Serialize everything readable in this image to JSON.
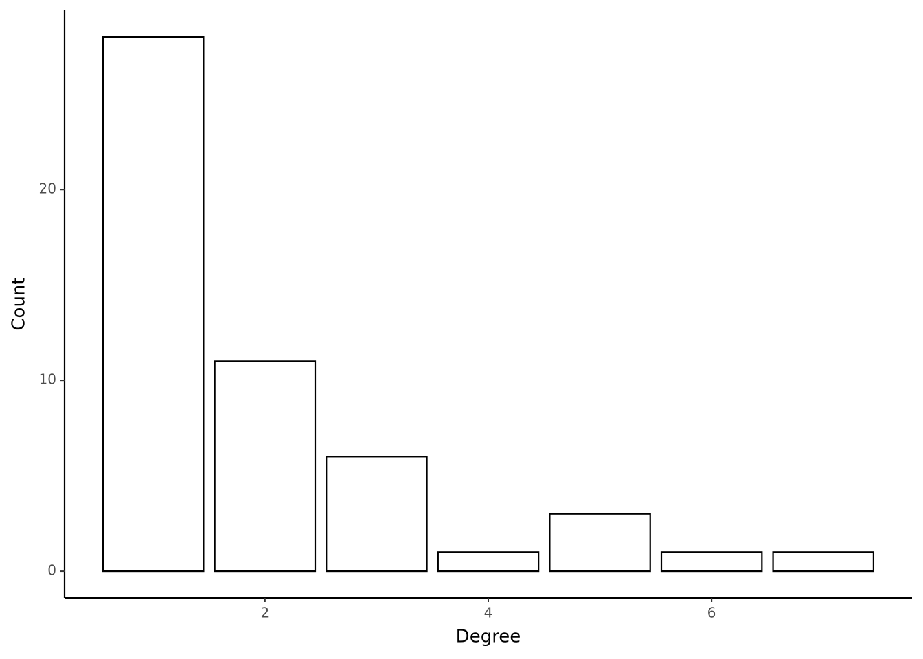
{
  "chart_data": {
    "type": "bar",
    "x_label": "Degree",
    "y_label": "Count",
    "x": [
      1,
      2,
      3,
      4,
      5,
      6,
      7
    ],
    "values": [
      28,
      11,
      6,
      1,
      3,
      1,
      1
    ],
    "color": "#ffffff",
    "edge_color": "#000000",
    "xlim": [
      0.205,
      7.795
    ],
    "xticks": [
      2,
      4,
      6
    ],
    "ylim": [
      -1.4,
      29.4
    ],
    "yticks": [
      0,
      10,
      20
    ],
    "grid": false
  }
}
